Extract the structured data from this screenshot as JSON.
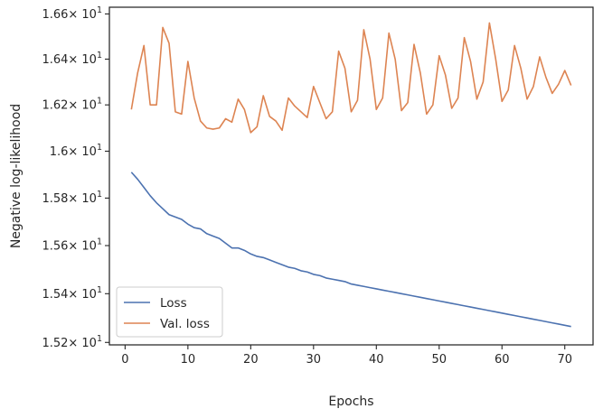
{
  "chart_data": {
    "type": "line",
    "xlabel": "Epochs",
    "ylabel": "Negative log-likelihood",
    "xlim": [
      -2.5,
      74.5
    ],
    "ylim": [
      15.19,
      16.63
    ],
    "y_scale": "log",
    "grid": false,
    "legend_position": "bottom-left",
    "x_ticks": [
      0,
      10,
      20,
      30,
      40,
      50,
      60,
      70
    ],
    "x_tick_labels": [
      "0",
      "10",
      "20",
      "30",
      "40",
      "50",
      "60",
      "70"
    ],
    "y_ticks": [
      15.2,
      15.4,
      15.6,
      15.8,
      16.0,
      16.2,
      16.4,
      16.6
    ],
    "y_tick_mantissas": [
      "1.52",
      "1.54",
      "1.56",
      "1.58",
      "1.6",
      "1.62",
      "1.64",
      "1.66"
    ],
    "y_tick_base": "× 10",
    "y_tick_exponent": "1",
    "x": [
      1,
      2,
      3,
      4,
      5,
      6,
      7,
      8,
      9,
      10,
      11,
      12,
      13,
      14,
      15,
      16,
      17,
      18,
      19,
      20,
      21,
      22,
      23,
      24,
      25,
      26,
      27,
      28,
      29,
      30,
      31,
      32,
      33,
      34,
      35,
      36,
      37,
      38,
      39,
      40,
      41,
      42,
      43,
      44,
      45,
      46,
      47,
      48,
      49,
      50,
      51,
      52,
      53,
      54,
      55,
      56,
      57,
      58,
      59,
      60,
      61,
      62,
      63,
      64,
      65,
      66,
      67,
      68,
      69,
      70,
      71
    ],
    "series": [
      {
        "name": "Loss",
        "color": "#4c72b0",
        "values": [
          15.91,
          15.88,
          15.845,
          15.81,
          15.78,
          15.755,
          15.73,
          15.72,
          15.71,
          15.69,
          15.675,
          15.67,
          15.65,
          15.64,
          15.63,
          15.61,
          15.59,
          15.59,
          15.58,
          15.565,
          15.555,
          15.55,
          15.54,
          15.53,
          15.52,
          15.51,
          15.505,
          15.495,
          15.49,
          15.48,
          15.475,
          15.465,
          15.46,
          15.455,
          15.45,
          15.44,
          15.435,
          15.43,
          15.425,
          15.42,
          15.415,
          15.41,
          15.405,
          15.4,
          15.395,
          15.39,
          15.385,
          15.38,
          15.375,
          15.37,
          15.365,
          15.36,
          15.355,
          15.35,
          15.345,
          15.34,
          15.335,
          15.33,
          15.325,
          15.32,
          15.315,
          15.31,
          15.305,
          15.3,
          15.295,
          15.29,
          15.285,
          15.28,
          15.275,
          15.27,
          15.265
        ]
      },
      {
        "name": "Val. loss",
        "color": "#dd8452",
        "values": [
          16.18,
          16.34,
          16.46,
          16.2,
          16.2,
          16.54,
          16.47,
          16.17,
          16.16,
          16.39,
          16.23,
          16.13,
          16.1,
          16.095,
          16.1,
          16.14,
          16.125,
          16.225,
          16.18,
          16.08,
          16.105,
          16.24,
          16.15,
          16.13,
          16.09,
          16.23,
          16.195,
          16.17,
          16.145,
          16.28,
          16.21,
          16.14,
          16.17,
          16.435,
          16.36,
          16.17,
          16.22,
          16.53,
          16.4,
          16.18,
          16.23,
          16.515,
          16.4,
          16.175,
          16.21,
          16.465,
          16.34,
          16.16,
          16.2,
          16.415,
          16.33,
          16.185,
          16.23,
          16.495,
          16.39,
          16.225,
          16.3,
          16.56,
          16.4,
          16.215,
          16.265,
          16.46,
          16.36,
          16.225,
          16.28,
          16.41,
          16.32,
          16.25,
          16.29,
          16.35,
          16.285
        ]
      }
    ]
  }
}
